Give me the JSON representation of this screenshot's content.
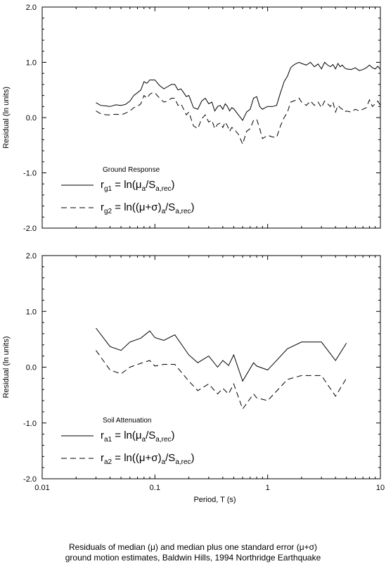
{
  "chart_data": [
    {
      "type": "line",
      "ylabel": "Residual (ln units)",
      "xlabel": "",
      "xscale": "log",
      "xlim": [
        0.01,
        10
      ],
      "ylim": [
        -2.0,
        2.0
      ],
      "yticks": [
        "2.0",
        "1.0",
        "0.0",
        "-1.0",
        "-2.0"
      ],
      "xticks": [],
      "grid": false,
      "legend": {
        "title": "Ground Response",
        "placement": "bottom-left",
        "entries": [
          {
            "prefix": "r",
            "sub": "g1",
            "mid": " = ln(",
            "greek": "μ",
            "sub2": "a",
            "mid2": "/S",
            "sub3": "a,rec",
            "end": ")",
            "style": "solid"
          },
          {
            "prefix": "r",
            "sub": "g2",
            "mid": " = ln((",
            "greek": "μ+σ",
            "mid1b": ")",
            "sub2": "a",
            "mid2": "/S",
            "sub3": "a,rec",
            "end": ")",
            "style": "dashed"
          }
        ]
      },
      "series": [
        {
          "style": "solid",
          "x": [
            0.03,
            0.033,
            0.037,
            0.04,
            0.045,
            0.05,
            0.055,
            0.06,
            0.065,
            0.07,
            0.075,
            0.08,
            0.085,
            0.09,
            0.095,
            0.1,
            0.11,
            0.12,
            0.13,
            0.14,
            0.15,
            0.16,
            0.17,
            0.18,
            0.19,
            0.2,
            0.22,
            0.24,
            0.26,
            0.28,
            0.3,
            0.32,
            0.34,
            0.36,
            0.38,
            0.4,
            0.42,
            0.44,
            0.46,
            0.48,
            0.5,
            0.55,
            0.6,
            0.65,
            0.7,
            0.75,
            0.8,
            0.85,
            0.9,
            0.95,
            1.0,
            1.1,
            1.2,
            1.3,
            1.4,
            1.5,
            1.6,
            1.7,
            1.8,
            1.9,
            2.0,
            2.2,
            2.4,
            2.6,
            2.8,
            3.0,
            3.2,
            3.4,
            3.6,
            3.8,
            4.0,
            4.2,
            4.4,
            4.6,
            4.8,
            5.0,
            5.5,
            6.0,
            6.5,
            7.0,
            7.5,
            8.0,
            8.5,
            9.0,
            9.5,
            10.0
          ],
          "values": [
            0.27,
            0.22,
            0.21,
            0.2,
            0.23,
            0.22,
            0.24,
            0.3,
            0.4,
            0.45,
            0.5,
            0.65,
            0.62,
            0.68,
            0.68,
            0.68,
            0.58,
            0.52,
            0.56,
            0.6,
            0.6,
            0.5,
            0.52,
            0.45,
            0.38,
            0.4,
            0.18,
            0.15,
            0.3,
            0.35,
            0.25,
            0.28,
            0.12,
            0.2,
            0.22,
            0.15,
            0.25,
            0.2,
            0.12,
            0.18,
            0.16,
            0.05,
            -0.05,
            0.1,
            0.15,
            0.35,
            0.38,
            0.2,
            0.15,
            0.18,
            0.2,
            0.2,
            0.22,
            0.45,
            0.65,
            0.75,
            0.9,
            0.95,
            0.98,
            1.0,
            0.98,
            0.95,
            1.0,
            0.92,
            0.97,
            0.88,
            1.0,
            0.95,
            0.92,
            0.96,
            0.88,
            0.98,
            0.92,
            0.95,
            0.9,
            0.88,
            0.87,
            0.9,
            0.85,
            0.87,
            0.9,
            0.95,
            0.9,
            0.88,
            0.93,
            0.87
          ]
        },
        {
          "style": "dashed",
          "x": [
            0.03,
            0.033,
            0.037,
            0.04,
            0.045,
            0.05,
            0.055,
            0.06,
            0.065,
            0.07,
            0.075,
            0.08,
            0.085,
            0.09,
            0.095,
            0.1,
            0.11,
            0.12,
            0.13,
            0.14,
            0.15,
            0.16,
            0.17,
            0.18,
            0.19,
            0.2,
            0.22,
            0.24,
            0.26,
            0.28,
            0.3,
            0.32,
            0.34,
            0.36,
            0.38,
            0.4,
            0.42,
            0.44,
            0.46,
            0.48,
            0.5,
            0.55,
            0.6,
            0.65,
            0.7,
            0.75,
            0.8,
            0.85,
            0.9,
            0.95,
            1.0,
            1.1,
            1.2,
            1.3,
            1.4,
            1.5,
            1.6,
            1.7,
            1.8,
            1.9,
            2.0,
            2.2,
            2.4,
            2.6,
            2.8,
            3.0,
            3.2,
            3.4,
            3.6,
            3.8,
            4.0,
            4.2,
            4.4,
            4.6,
            4.8,
            5.0,
            5.5,
            6.0,
            6.5,
            7.0,
            7.5,
            8.0,
            8.5,
            9.0,
            9.5,
            10.0
          ],
          "values": [
            0.12,
            0.07,
            0.05,
            0.05,
            0.06,
            0.05,
            0.08,
            0.12,
            0.18,
            0.2,
            0.25,
            0.4,
            0.35,
            0.42,
            0.45,
            0.45,
            0.35,
            0.28,
            0.3,
            0.35,
            0.35,
            0.22,
            0.25,
            0.15,
            0.05,
            0.1,
            -0.15,
            -0.2,
            -0.02,
            0.05,
            -0.08,
            -0.05,
            -0.2,
            -0.12,
            -0.1,
            -0.18,
            -0.08,
            -0.15,
            -0.25,
            -0.18,
            -0.2,
            -0.3,
            -0.48,
            -0.25,
            -0.2,
            -0.05,
            -0.03,
            -0.2,
            -0.38,
            -0.35,
            -0.32,
            -0.35,
            -0.36,
            -0.15,
            0.0,
            0.1,
            0.28,
            0.3,
            0.32,
            0.35,
            0.28,
            0.22,
            0.3,
            0.22,
            0.28,
            0.18,
            0.3,
            0.25,
            0.2,
            0.28,
            0.1,
            0.22,
            0.18,
            0.15,
            0.1,
            0.12,
            0.1,
            0.15,
            0.12,
            0.15,
            0.18,
            0.32,
            0.2,
            0.25,
            0.3,
            0.22
          ]
        }
      ]
    },
    {
      "type": "line",
      "ylabel": "Residual (ln units)",
      "xlabel": "Period, T (s)",
      "xscale": "log",
      "xlim": [
        0.01,
        10
      ],
      "ylim": [
        -2.0,
        2.0
      ],
      "yticks": [
        "2.0",
        "1.0",
        "0.0",
        "-1.0",
        "-2.0"
      ],
      "xticks": [
        "0.01",
        "0.1",
        "1",
        "10"
      ],
      "grid": false,
      "legend": {
        "title": "Soil Attenuation",
        "placement": "bottom-left",
        "entries": [
          {
            "prefix": "r",
            "sub": "a1",
            "mid": " = ln(",
            "greek": "μ",
            "sub2": "a",
            "mid2": "/S",
            "sub3": "a,rec",
            "end": ")",
            "style": "solid"
          },
          {
            "prefix": "r",
            "sub": "a2",
            "mid": " = ln((",
            "greek": "μ+σ",
            "mid1b": ")",
            "sub2": "a",
            "mid2": "/S",
            "sub3": "a,rec",
            "end": ")",
            "style": "dashed"
          }
        ]
      },
      "series": [
        {
          "style": "solid",
          "x": [
            0.03,
            0.04,
            0.05,
            0.06,
            0.075,
            0.09,
            0.1,
            0.12,
            0.15,
            0.2,
            0.24,
            0.3,
            0.36,
            0.4,
            0.45,
            0.5,
            0.6,
            0.75,
            0.8,
            1.0,
            1.5,
            2.0,
            3.0,
            4.0,
            5.0
          ],
          "values": [
            0.7,
            0.37,
            0.3,
            0.45,
            0.52,
            0.65,
            0.53,
            0.48,
            0.58,
            0.22,
            0.08,
            0.2,
            0.0,
            0.12,
            0.03,
            0.22,
            -0.25,
            0.08,
            0.02,
            -0.05,
            0.33,
            0.45,
            0.45,
            0.12,
            0.43
          ]
        },
        {
          "style": "dashed",
          "x": [
            0.03,
            0.04,
            0.05,
            0.06,
            0.075,
            0.09,
            0.1,
            0.12,
            0.15,
            0.2,
            0.24,
            0.3,
            0.36,
            0.4,
            0.45,
            0.5,
            0.6,
            0.75,
            0.8,
            1.0,
            1.5,
            2.0,
            3.0,
            4.0,
            5.0
          ],
          "values": [
            0.3,
            -0.05,
            -0.12,
            0.0,
            0.07,
            0.12,
            0.02,
            0.05,
            0.05,
            -0.25,
            -0.42,
            -0.3,
            -0.48,
            -0.38,
            -0.48,
            -0.3,
            -0.75,
            -0.48,
            -0.55,
            -0.6,
            -0.22,
            -0.15,
            -0.15,
            -0.52,
            -0.2
          ]
        }
      ]
    }
  ],
  "caption": {
    "line1": "Residuals of median (μ) and median plus one standard error (μ+σ)",
    "line2": "ground motion estimates, Baldwin Hills, 1994 Northridge Earthquake"
  }
}
